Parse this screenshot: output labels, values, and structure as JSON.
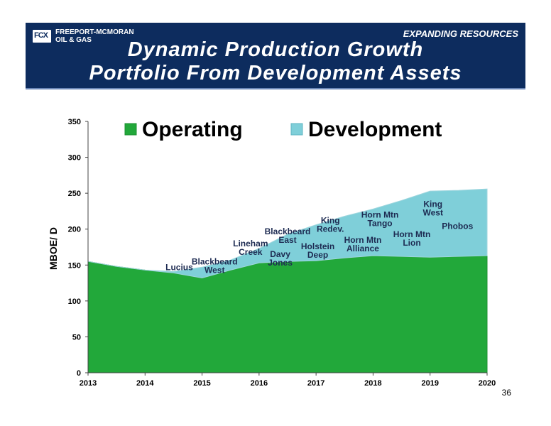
{
  "header": {
    "logo_text": "FREEPORT-MCMORAN\nOIL & GAS",
    "logo_mark": "FCX",
    "tagline": "EXPANDING RESOURCES",
    "title_line1": "Dynamic Production Growth",
    "title_line2": "Portfolio From Development Assets"
  },
  "page_number": "36",
  "colors": {
    "banner": "#0d2c5e",
    "operating": "#22a83a",
    "development": "#7fcfd9",
    "label_text": "#1d2b52"
  },
  "chart_data": {
    "type": "area",
    "stacked": true,
    "title": "",
    "xlabel": "",
    "ylabel": "MBOE/ D",
    "x": [
      2013,
      2014,
      2015,
      2016,
      2017,
      2018,
      2019,
      2020
    ],
    "xlim": [
      2013,
      2020
    ],
    "ylim": [
      0,
      350
    ],
    "yticks": [
      0,
      50,
      100,
      150,
      200,
      250,
      300,
      350
    ],
    "grid": false,
    "legend_position": "top",
    "series": [
      {
        "name": "Operating",
        "color": "#22a83a",
        "x": [
          2013,
          2013.5,
          2014,
          2014.5,
          2015,
          2015.5,
          2016,
          2016.5,
          2017,
          2017.5,
          2018,
          2018.5,
          2019,
          2019.5,
          2020
        ],
        "values": [
          155,
          148,
          143,
          139,
          132,
          143,
          153,
          155,
          156,
          160,
          163,
          162,
          161,
          162,
          163
        ]
      },
      {
        "name": "Development",
        "color": "#7fcfd9",
        "x": [
          2013,
          2013.5,
          2014,
          2014.5,
          2015,
          2015.5,
          2016,
          2016.5,
          2017,
          2017.5,
          2018,
          2018.5,
          2019,
          2019.5,
          2020
        ],
        "values": [
          0,
          0,
          0,
          2,
          15,
          14,
          20,
          38,
          50,
          58,
          65,
          78,
          92,
          92,
          93
        ]
      }
    ],
    "annotations": [
      {
        "text": "Lucius",
        "x": 2014.6,
        "y": 143
      },
      {
        "text": "Blackbeard\nWest",
        "x": 2015.22,
        "y": 151
      },
      {
        "text": "Lineham\nCreek",
        "x": 2015.85,
        "y": 176
      },
      {
        "text": "Davy\nJones",
        "x": 2016.37,
        "y": 161
      },
      {
        "text": "Blackbeard\nEast",
        "x": 2016.5,
        "y": 193
      },
      {
        "text": "Holstein\nDeep",
        "x": 2017.03,
        "y": 172
      },
      {
        "text": "King\nRedev.",
        "x": 2017.25,
        "y": 208
      },
      {
        "text": "Horn Mtn\nTango",
        "x": 2018.12,
        "y": 216
      },
      {
        "text": "Horn Mtn\nAlliance",
        "x": 2017.82,
        "y": 181
      },
      {
        "text": "Horn Mtn\nLion",
        "x": 2018.68,
        "y": 189
      },
      {
        "text": "King\nWest",
        "x": 2019.05,
        "y": 231
      },
      {
        "text": "Phobos",
        "x": 2019.48,
        "y": 200
      }
    ]
  }
}
